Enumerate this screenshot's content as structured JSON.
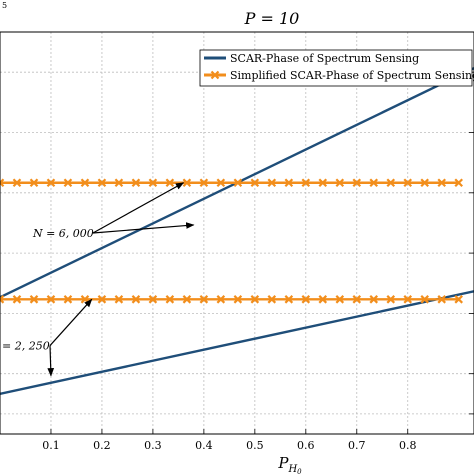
{
  "chart_data": {
    "type": "line",
    "title": "P = 10",
    "xlabel": "P_{H_0}",
    "ylabel": "",
    "y_multiplier_label": "5",
    "xlim": [
      0,
      0.93
    ],
    "ylim": [
      0,
      10
    ],
    "x_ticks": [
      "0.1",
      "0.2",
      "0.3",
      "0.4",
      "0.5",
      "0.6",
      "0.7",
      "0.8"
    ],
    "x_tick_values": [
      0.1,
      0.2,
      0.3,
      0.4,
      0.5,
      0.6,
      0.7,
      0.8
    ],
    "grid": true,
    "legend_position": "top-right",
    "series": [
      {
        "name": "SCAR-Phase of Spectrum Sensing",
        "color": "#1f4e79",
        "marker": "none",
        "x": [
          0,
          0.93
        ],
        "y": [
          3.4,
          9.1
        ]
      },
      {
        "name": "Simplified SCAR-Phase of Spectrum Sensing",
        "color": "#f28e1c",
        "marker": "x",
        "x": [
          0,
          0.0333,
          0.0667,
          0.1,
          0.1333,
          0.1667,
          0.2,
          0.2333,
          0.2667,
          0.3,
          0.3333,
          0.3667,
          0.4,
          0.4333,
          0.4667,
          0.5,
          0.5333,
          0.5667,
          0.6,
          0.6333,
          0.6667,
          0.7,
          0.7333,
          0.7667,
          0.8,
          0.8333,
          0.8667,
          0.9
        ],
        "y": [
          6.25,
          6.25,
          6.25,
          6.25,
          6.25,
          6.25,
          6.25,
          6.25,
          6.25,
          6.25,
          6.25,
          6.25,
          6.25,
          6.25,
          6.25,
          6.25,
          6.25,
          6.25,
          6.25,
          6.25,
          6.25,
          6.25,
          6.25,
          6.25,
          6.25,
          6.25,
          6.25,
          6.25
        ]
      },
      {
        "name": "",
        "color": "#1f4e79",
        "marker": "none",
        "x": [
          0,
          0.93
        ],
        "y": [
          1.0,
          3.55
        ]
      },
      {
        "name": "",
        "color": "#f28e1c",
        "marker": "x",
        "x": [
          0,
          0.0333,
          0.0667,
          0.1,
          0.1333,
          0.1667,
          0.2,
          0.2333,
          0.2667,
          0.3,
          0.3333,
          0.3667,
          0.4,
          0.4333,
          0.4667,
          0.5,
          0.5333,
          0.5667,
          0.6,
          0.6333,
          0.6667,
          0.7,
          0.7333,
          0.7667,
          0.8,
          0.8333,
          0.8667,
          0.9
        ],
        "y": [
          3.35,
          3.35,
          3.35,
          3.35,
          3.35,
          3.35,
          3.35,
          3.35,
          3.35,
          3.35,
          3.35,
          3.35,
          3.35,
          3.35,
          3.35,
          3.35,
          3.35,
          3.35,
          3.35,
          3.35,
          3.35,
          3.35,
          3.35,
          3.35,
          3.35,
          3.35,
          3.35,
          3.35
        ]
      }
    ],
    "annotations": [
      {
        "text": "N = 6, 000",
        "at": [
          0.1,
          5.0
        ],
        "arrows_to": [
          [
            0.36,
            6.25
          ],
          [
            0.38,
            5.2
          ]
        ]
      },
      {
        "text": "= 2, 250",
        "at": [
          0.0,
          2.2
        ],
        "arrows_to": [
          [
            0.18,
            3.35
          ],
          [
            0.1,
            1.45
          ]
        ]
      }
    ]
  }
}
